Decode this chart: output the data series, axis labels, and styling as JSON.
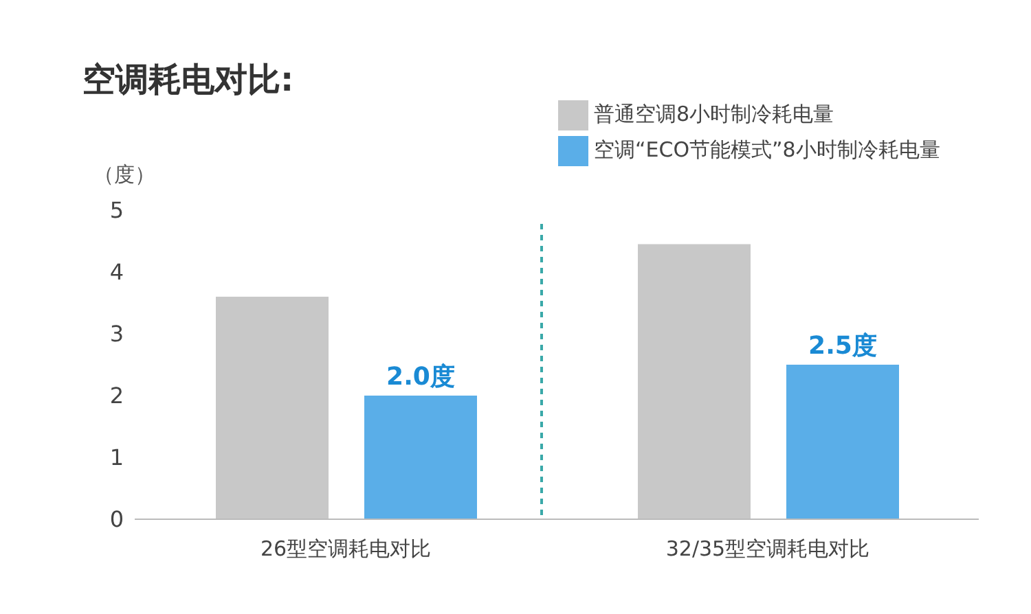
{
  "chart_data": {
    "type": "bar",
    "title": "空调耗电对比:",
    "ylabel": "（度）",
    "categories": [
      "26型空调耗电对比",
      "32/35型空调耗电对比"
    ],
    "series": [
      {
        "name": "普通空调8小时制冷耗电量",
        "color": "#c8c8c8",
        "values": [
          3.6,
          4.45
        ]
      },
      {
        "name": "空调“ECO节能模式”8小时制冷耗电量",
        "color": "#5aaee8",
        "values": [
          2.0,
          2.5
        ],
        "value_labels": [
          "2.0度",
          "2.5度"
        ]
      }
    ],
    "ylim": [
      0,
      5
    ],
    "yticks": [
      0,
      1,
      2,
      3,
      4,
      5
    ],
    "legend": "top right"
  }
}
